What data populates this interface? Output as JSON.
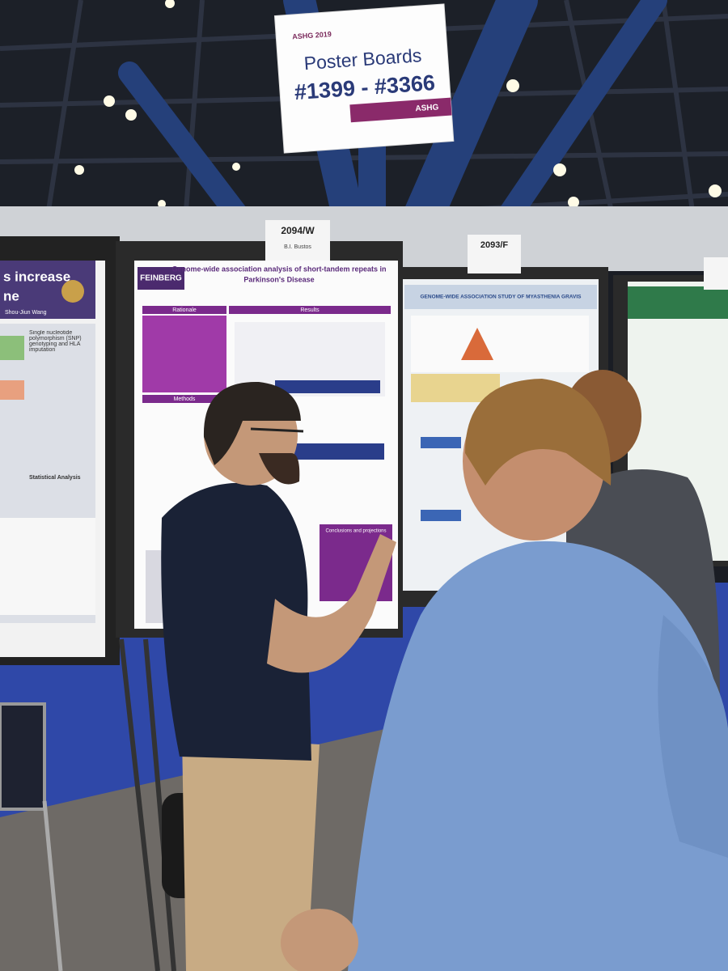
{
  "sign": {
    "event": "ASHG 2019",
    "title": "Poster Boards",
    "range": "#1399 - #3366",
    "logo": "ASHG"
  },
  "board_labels": [
    {
      "number": "2094/W",
      "name": "B.I. Bustos"
    },
    {
      "number": "2093/F"
    }
  ],
  "posters": [
    {
      "title_lines": [
        "s increase",
        "ne"
      ],
      "author": "Shou-Jiun Wang",
      "sections": [
        "Single nucleotide polymorphism (SNP) genotyping and HLA imputation",
        "Statistical Analysis"
      ]
    },
    {
      "institution": "FEINBERG",
      "title_lines": [
        "Genome-wide association analysis of short-tandem repeats in",
        "Parkinson's Disease"
      ],
      "sections": [
        "Rationale",
        "Results",
        "Methods",
        "Conclusions and projections"
      ]
    },
    {
      "title": "GENOME-WIDE ASSOCIATION STUDY OF MYASTHENIA GRAVIS"
    }
  ]
}
